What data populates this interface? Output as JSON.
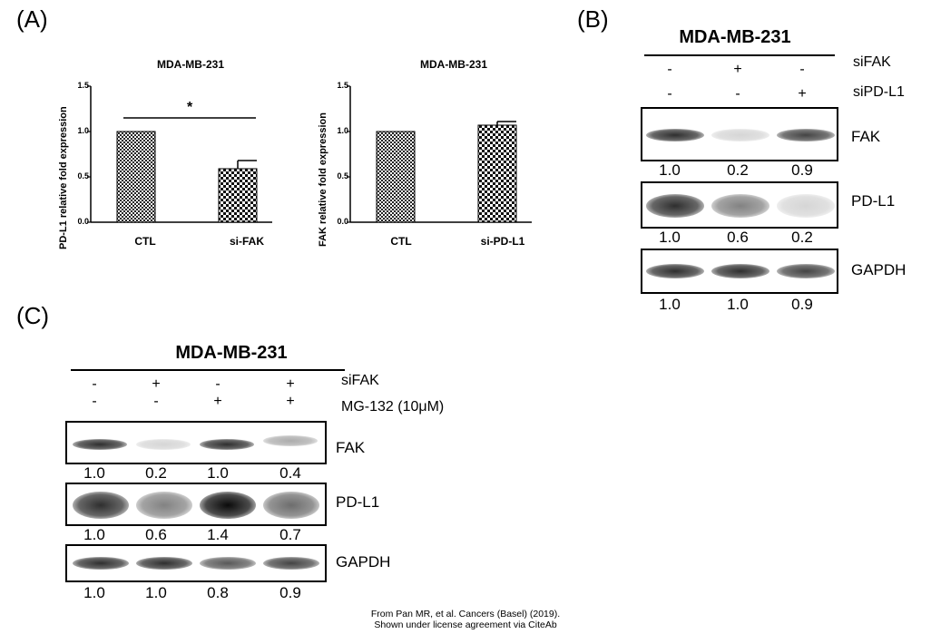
{
  "panels": {
    "A": "(A)",
    "B": "(B)",
    "C": "(C)"
  },
  "chart_data": [
    {
      "type": "bar",
      "title": "MDA-MB-231",
      "ylabel": "PD-L1 relative fold expression",
      "xlabel": "",
      "categories": [
        "CTL",
        "si-FAK"
      ],
      "values": [
        1.0,
        0.59
      ],
      "errors": [
        0,
        0.09
      ],
      "ylim": [
        0,
        1.5
      ],
      "yticks": [
        "0.0",
        "0.5",
        "1.0",
        "1.5"
      ],
      "annotation": "*"
    },
    {
      "type": "bar",
      "title": "MDA-MB-231",
      "ylabel": "FAK relative fold expression",
      "xlabel": "",
      "categories": [
        "CTL",
        "si-PD-L1"
      ],
      "values": [
        1.0,
        1.07
      ],
      "errors": [
        0,
        0.04
      ],
      "ylim": [
        0,
        1.5
      ],
      "yticks": [
        "0.0",
        "0.5",
        "1.0",
        "1.5"
      ]
    }
  ],
  "blotB": {
    "title": "MDA-MB-231",
    "conditions": [
      {
        "label": "siFAK",
        "signs": [
          "-",
          "+",
          "-"
        ]
      },
      {
        "label": "siPD-L1",
        "signs": [
          "-",
          "-",
          "+"
        ]
      }
    ],
    "rows": [
      {
        "protein": "FAK",
        "quant": [
          "1.0",
          "0.2",
          "0.9"
        ],
        "intensity": [
          1.0,
          0.2,
          0.9
        ]
      },
      {
        "protein": "PD-L1",
        "quant": [
          "1.0",
          "0.6",
          "0.2"
        ],
        "intensity": [
          1.0,
          0.6,
          0.2
        ]
      },
      {
        "protein": "GAPDH",
        "quant": [
          "1.0",
          "1.0",
          "0.9"
        ],
        "intensity": [
          1.0,
          1.0,
          0.9
        ]
      }
    ]
  },
  "blotC": {
    "title": "MDA-MB-231",
    "conditions": [
      {
        "label": "siFAK",
        "signs": [
          "-",
          "+",
          "-",
          "+"
        ]
      },
      {
        "label": "MG-132 (10μM)",
        "signs": [
          "-",
          "-",
          "+",
          "+"
        ]
      }
    ],
    "rows": [
      {
        "protein": "FAK",
        "quant": [
          "1.0",
          "0.2",
          "1.0",
          "0.4"
        ],
        "intensity": [
          1.0,
          0.2,
          1.0,
          0.4
        ]
      },
      {
        "protein": "PD-L1",
        "quant": [
          "1.0",
          "0.6",
          "1.4",
          "0.7"
        ],
        "intensity": [
          1.0,
          0.6,
          1.4,
          0.7
        ]
      },
      {
        "protein": "GAPDH",
        "quant": [
          "1.0",
          "1.0",
          "0.8",
          "0.9"
        ],
        "intensity": [
          1.0,
          1.0,
          0.8,
          0.9
        ]
      }
    ]
  },
  "credit": {
    "line1": "From Pan MR, et al. Cancers (Basel) (2019).",
    "line2": "Shown under license agreement via CiteAb"
  }
}
